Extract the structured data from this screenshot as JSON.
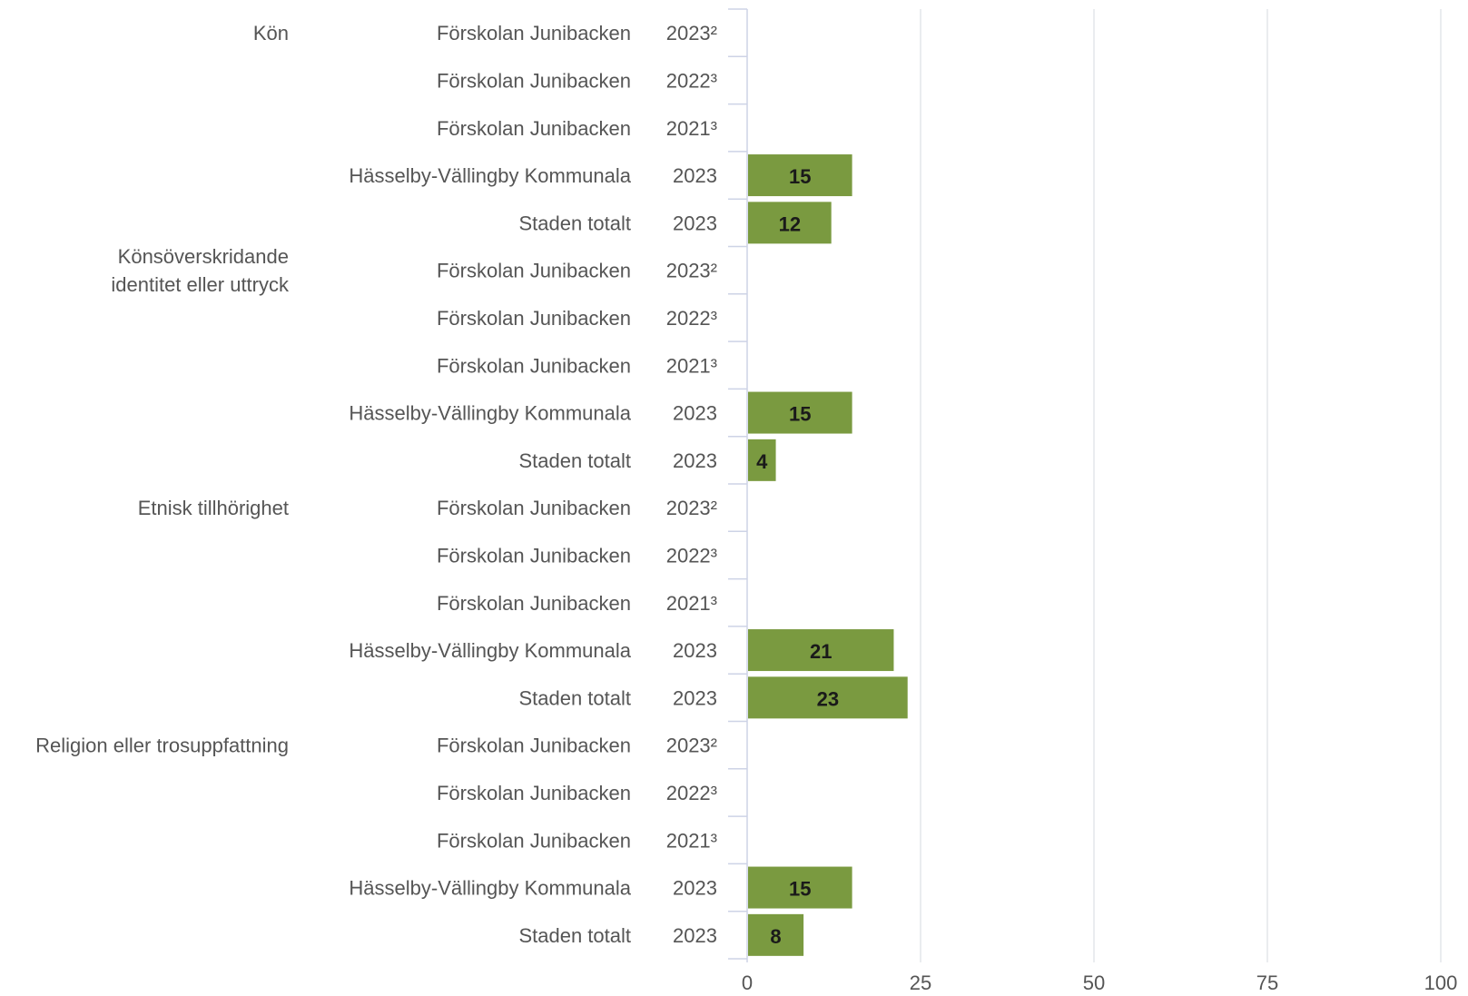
{
  "chart_data": {
    "type": "bar",
    "orientation": "horizontal",
    "bar_color": "#7a9a40",
    "text_color": "#555555",
    "value_label_color": "#1a1a1a",
    "grid_color": "#e3e5ea",
    "axis_color": "#cdd3e6",
    "grid": true,
    "xlim": [
      0,
      100
    ],
    "xticks": [
      "0",
      "25",
      "50",
      "75",
      "100"
    ],
    "groups": [
      {
        "label": "Kön",
        "rows": [
          {
            "unit": "Förskolan Junibacken",
            "year": "2023²",
            "value": null
          },
          {
            "unit": "Förskolan Junibacken",
            "year": "2022³",
            "value": null
          },
          {
            "unit": "Förskolan Junibacken",
            "year": "2021³",
            "value": null
          },
          {
            "unit": "Hässelby-Vällingby Kommunala",
            "year": "2023",
            "value": 15
          },
          {
            "unit": "Staden totalt",
            "year": "2023",
            "value": 12
          }
        ]
      },
      {
        "label": "Könsöverskridande identitet eller uttryck",
        "label_lines": [
          "Könsöverskridande",
          "identitet eller uttryck"
        ],
        "rows": [
          {
            "unit": "Förskolan Junibacken",
            "year": "2023²",
            "value": null
          },
          {
            "unit": "Förskolan Junibacken",
            "year": "2022³",
            "value": null
          },
          {
            "unit": "Förskolan Junibacken",
            "year": "2021³",
            "value": null
          },
          {
            "unit": "Hässelby-Vällingby Kommunala",
            "year": "2023",
            "value": 15
          },
          {
            "unit": "Staden totalt",
            "year": "2023",
            "value": 4
          }
        ]
      },
      {
        "label": "Etnisk tillhörighet",
        "rows": [
          {
            "unit": "Förskolan Junibacken",
            "year": "2023²",
            "value": null
          },
          {
            "unit": "Förskolan Junibacken",
            "year": "2022³",
            "value": null
          },
          {
            "unit": "Förskolan Junibacken",
            "year": "2021³",
            "value": null
          },
          {
            "unit": "Hässelby-Vällingby Kommunala",
            "year": "2023",
            "value": 21
          },
          {
            "unit": "Staden totalt",
            "year": "2023",
            "value": 23
          }
        ]
      },
      {
        "label": "Religion eller trosuppfattning",
        "rows": [
          {
            "unit": "Förskolan Junibacken",
            "year": "2023²",
            "value": null
          },
          {
            "unit": "Förskolan Junibacken",
            "year": "2022³",
            "value": null
          },
          {
            "unit": "Förskolan Junibacken",
            "year": "2021³",
            "value": null
          },
          {
            "unit": "Hässelby-Vällingby Kommunala",
            "year": "2023",
            "value": 15
          },
          {
            "unit": "Staden totalt",
            "year": "2023",
            "value": 8
          }
        ]
      }
    ]
  }
}
